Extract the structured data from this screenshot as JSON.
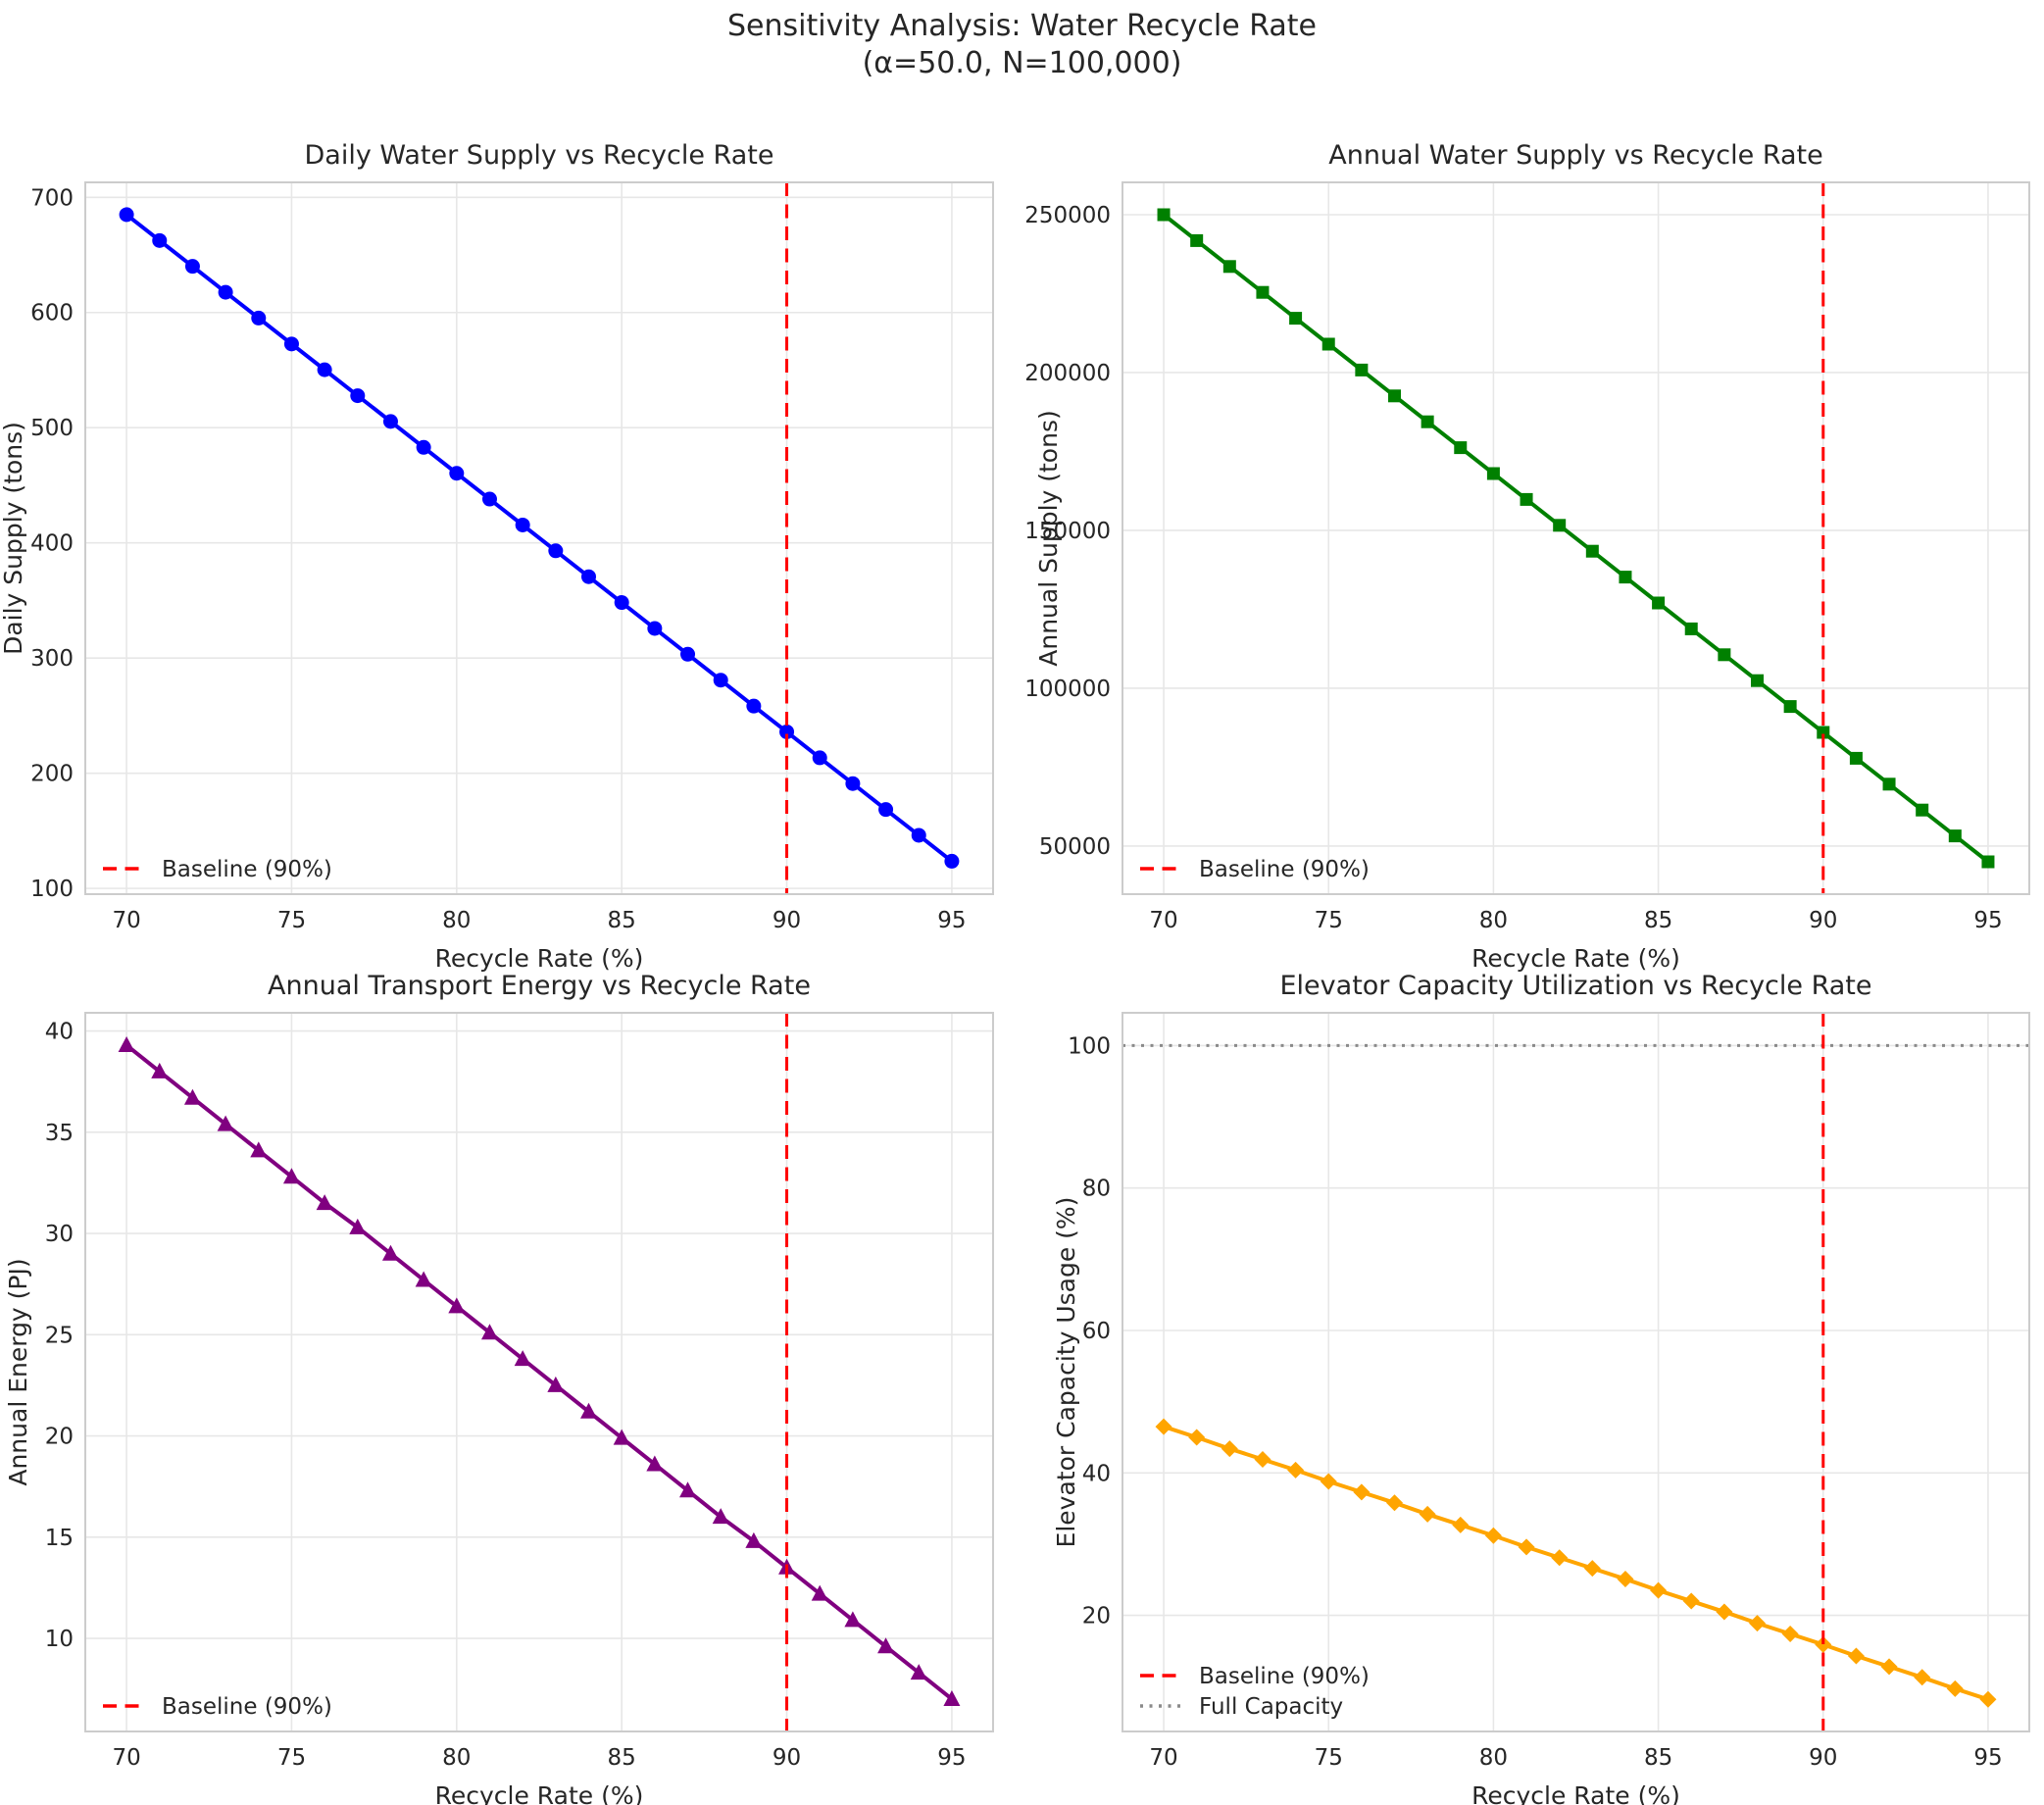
{
  "figure": {
    "suptitle_line1": "Sensitivity Analysis: Water Recycle Rate",
    "suptitle_line2": "(α=50.0, N=100,000)",
    "background": "#ffffff",
    "text_color": "#262626",
    "grid_color": "#e7e7e7",
    "spine_color": "#cccccc",
    "baseline_color": "#ff0000",
    "full_capacity_color": "#8a8a8a"
  },
  "chart_data": [
    {
      "type": "line",
      "name": "daily-water-supply",
      "title": "Daily Water Supply vs Recycle Rate",
      "xlabel": "Recycle Rate (%)",
      "ylabel": "Daily Supply (tons)",
      "series_name": "Daily Supply",
      "series_color": "#0000ff",
      "marker": "circle",
      "x": [
        70,
        71,
        72,
        73,
        74,
        75,
        76,
        77,
        78,
        79,
        80,
        81,
        82,
        83,
        84,
        85,
        86,
        87,
        88,
        89,
        90,
        91,
        92,
        93,
        94,
        95
      ],
      "values": [
        685.0,
        662.5,
        640.1,
        617.6,
        595.2,
        572.7,
        550.3,
        527.8,
        505.4,
        482.9,
        460.4,
        438.0,
        415.5,
        393.1,
        370.6,
        348.2,
        325.7,
        303.3,
        280.8,
        258.3,
        235.9,
        213.4,
        191.0,
        168.5,
        146.1,
        123.6
      ],
      "xlim": [
        68.75,
        96.25
      ],
      "ylim": [
        95,
        713
      ],
      "xticks": [
        70,
        75,
        80,
        85,
        90,
        95
      ],
      "yticks": [
        100,
        200,
        300,
        400,
        500,
        600,
        700
      ],
      "grid": true,
      "baseline_x": 90,
      "legend_position": "lower-left",
      "legend": [
        {
          "label": "Baseline (90%)",
          "style": "dashed",
          "color": "#ff0000"
        }
      ]
    },
    {
      "type": "line",
      "name": "annual-water-supply",
      "title": "Annual Water Supply vs Recycle Rate",
      "xlabel": "Recycle Rate (%)",
      "ylabel": "Annual Supply (tons)",
      "series_name": "Annual Supply",
      "series_color": "#008000",
      "marker": "square",
      "x": [
        70,
        71,
        72,
        73,
        74,
        75,
        76,
        77,
        78,
        79,
        80,
        81,
        82,
        83,
        84,
        85,
        86,
        87,
        88,
        89,
        90,
        91,
        92,
        93,
        94,
        95
      ],
      "values": [
        250000,
        241800,
        233600,
        225400,
        217200,
        209000,
        200800,
        192600,
        184400,
        176200,
        168000,
        159800,
        151600,
        143400,
        135200,
        127000,
        118800,
        110600,
        102400,
        94200,
        86000,
        77800,
        69600,
        61400,
        53200,
        45000
      ],
      "xlim": [
        68.75,
        96.25
      ],
      "ylim": [
        34750,
        260250
      ],
      "xticks": [
        70,
        75,
        80,
        85,
        90,
        95
      ],
      "yticks": [
        50000,
        100000,
        150000,
        200000,
        250000
      ],
      "grid": true,
      "baseline_x": 90,
      "legend_position": "lower-left",
      "legend": [
        {
          "label": "Baseline (90%)",
          "style": "dashed",
          "color": "#ff0000"
        }
      ]
    },
    {
      "type": "line",
      "name": "annual-transport-energy",
      "title": "Annual Transport Energy vs Recycle Rate",
      "xlabel": "Recycle Rate (%)",
      "ylabel": "Annual Energy (PJ)",
      "series_name": "Annual Energy",
      "series_color": "#800080",
      "marker": "triangle",
      "x": [
        70,
        71,
        72,
        73,
        74,
        75,
        76,
        77,
        78,
        79,
        80,
        81,
        82,
        83,
        84,
        85,
        86,
        87,
        88,
        89,
        90,
        91,
        92,
        93,
        94,
        95
      ],
      "values": [
        39.3,
        38.0,
        36.7,
        35.4,
        34.1,
        32.8,
        31.5,
        30.3,
        29.0,
        27.7,
        26.4,
        25.1,
        23.8,
        22.5,
        21.2,
        19.9,
        18.6,
        17.3,
        16.0,
        14.8,
        13.5,
        12.2,
        10.9,
        9.6,
        8.3,
        7.0
      ],
      "xlim": [
        68.75,
        96.25
      ],
      "ylim": [
        5.4,
        40.9
      ],
      "xticks": [
        70,
        75,
        80,
        85,
        90,
        95
      ],
      "yticks": [
        10,
        15,
        20,
        25,
        30,
        35,
        40
      ],
      "grid": true,
      "baseline_x": 90,
      "legend_position": "lower-left",
      "legend": [
        {
          "label": "Baseline (90%)",
          "style": "dashed",
          "color": "#ff0000"
        }
      ]
    },
    {
      "type": "line",
      "name": "elevator-capacity-utilization",
      "title": "Elevator Capacity Utilization vs Recycle Rate",
      "xlabel": "Recycle Rate (%)",
      "ylabel": "Elevator Capacity Usage (%)",
      "series_name": "Elevator Capacity Usage",
      "series_color": "#ffa500",
      "marker": "diamond",
      "x": [
        70,
        71,
        72,
        73,
        74,
        75,
        76,
        77,
        78,
        79,
        80,
        81,
        82,
        83,
        84,
        85,
        86,
        87,
        88,
        89,
        90,
        91,
        92,
        93,
        94,
        95
      ],
      "values": [
        46.5,
        45.0,
        43.4,
        41.9,
        40.4,
        38.8,
        37.3,
        35.8,
        34.2,
        32.7,
        31.2,
        29.6,
        28.1,
        26.6,
        25.1,
        23.5,
        22.0,
        20.5,
        18.9,
        17.4,
        15.9,
        14.3,
        12.8,
        11.3,
        9.7,
        8.2
      ],
      "xlim": [
        68.75,
        96.25
      ],
      "ylim": [
        3.7,
        104.6
      ],
      "xticks": [
        70,
        75,
        80,
        85,
        90,
        95
      ],
      "yticks": [
        20,
        40,
        60,
        80,
        100
      ],
      "grid": true,
      "baseline_x": 90,
      "hline": {
        "y": 100,
        "style": "dotted",
        "color": "#8a8a8a"
      },
      "legend_position": "lower-left",
      "legend": [
        {
          "label": "Baseline (90%)",
          "style": "dashed",
          "color": "#ff0000"
        },
        {
          "label": "Full Capacity",
          "style": "dotted",
          "color": "#8a8a8a"
        }
      ]
    }
  ]
}
